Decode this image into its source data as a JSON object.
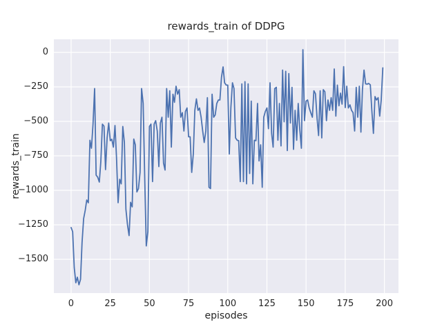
{
  "figure": {
    "title": "rewards_train of DDPG",
    "colors": {
      "figure_background": "#ffffff",
      "axes_background": "#eaeaf2",
      "grid": "#ffffff",
      "line": "#4c72b0",
      "text": "#262626"
    }
  },
  "chart_data": {
    "type": "line",
    "title": "rewards_train of DDPG",
    "xlabel": "episodes",
    "ylabel": "rewards_train",
    "grid": true,
    "legend": false,
    "xlim": [
      -11,
      209
    ],
    "ylim": [
      -1745,
      95
    ],
    "x_ticks": [
      0,
      25,
      50,
      75,
      100,
      125,
      150,
      175,
      200
    ],
    "x_tick_labels": [
      "0",
      "25",
      "50",
      "75",
      "100",
      "125",
      "150",
      "175",
      "200"
    ],
    "y_ticks": [
      0,
      -250,
      -500,
      -750,
      -1000,
      -1250,
      -1500
    ],
    "y_tick_labels": [
      "0",
      "−250",
      "−500",
      "−750",
      "−1000",
      "−1250",
      "−1500"
    ],
    "x_start": 0,
    "x_step": 1,
    "series": [
      {
        "name": "rewards_train",
        "color": "#4c72b0",
        "values": [
          -1270,
          -1300,
          -1560,
          -1670,
          -1630,
          -1685,
          -1645,
          -1380,
          -1205,
          -1145,
          -1070,
          -1090,
          -637,
          -695,
          -520,
          -262,
          -890,
          -905,
          -940,
          -790,
          -520,
          -535,
          -850,
          -620,
          -512,
          -640,
          -630,
          -687,
          -530,
          -762,
          -1090,
          -920,
          -953,
          -537,
          -653,
          -1137,
          -1250,
          -1328,
          -1087,
          -1120,
          -628,
          -670,
          -1012,
          -987,
          -870,
          -262,
          -370,
          -920,
          -1403,
          -1300,
          -537,
          -520,
          -937,
          -520,
          -495,
          -570,
          -828,
          -512,
          -470,
          -803,
          -853,
          -262,
          -470,
          -278,
          -687,
          -303,
          -362,
          -245,
          -303,
          -270,
          -470,
          -437,
          -570,
          -428,
          -403,
          -612,
          -612,
          -870,
          -737,
          -420,
          -337,
          -420,
          -403,
          -470,
          -570,
          -653,
          -570,
          -328,
          -978,
          -987,
          -303,
          -470,
          -453,
          -370,
          -345,
          -345,
          -180,
          -105,
          -220,
          -237,
          -237,
          -737,
          -400,
          -220,
          -262,
          -620,
          -637,
          -640,
          -937,
          -228,
          -937,
          -212,
          -953,
          -228,
          -878,
          -353,
          -953,
          -637,
          -640,
          -370,
          -787,
          -670,
          -978,
          -470,
          -428,
          -403,
          -553,
          -220,
          -587,
          -687,
          -262,
          -253,
          -637,
          -370,
          -678,
          -128,
          -503,
          -137,
          -712,
          -153,
          -512,
          -253,
          -703,
          -420,
          -637,
          -370,
          -560,
          -695,
          20,
          -495,
          -353,
          -345,
          -403,
          -437,
          -470,
          -278,
          -300,
          -478,
          -603,
          -278,
          -620,
          -270,
          -285,
          -495,
          -345,
          -420,
          -328,
          -420,
          -120,
          -462,
          -237,
          -387,
          -295,
          -375,
          -103,
          -400,
          -245,
          -403,
          -380,
          -420,
          -437,
          -570,
          -253,
          -470,
          -245,
          -578,
          -270,
          -128,
          -228,
          -230,
          -225,
          -235,
          -420,
          -587,
          -320,
          -345,
          -328,
          -462,
          -345,
          -112
        ]
      }
    ]
  }
}
